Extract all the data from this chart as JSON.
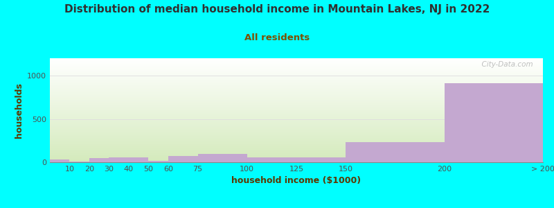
{
  "title": "Distribution of median household income in Mountain Lakes, NJ in 2022",
  "subtitle": "All residents",
  "xlabel": "household income ($1000)",
  "ylabel": "households",
  "tick_labels": [
    "10",
    "20",
    "30",
    "40",
    "50",
    "60",
    "75",
    "100",
    "125",
    "150",
    "200",
    "> 200"
  ],
  "bin_edges": [
    0,
    10,
    20,
    30,
    40,
    50,
    60,
    75,
    100,
    125,
    150,
    200,
    250
  ],
  "values": [
    35,
    10,
    45,
    55,
    55,
    15,
    70,
    95,
    55,
    60,
    235,
    910
  ],
  "bar_color": "#C4A8D0",
  "bg_outer": "#00FFFF",
  "bg_plot_top_color": "#FFFFFF",
  "bg_plot_bottom_color": "#D4EABC",
  "title_color": "#303030",
  "subtitle_color": "#7B5000",
  "axis_label_color": "#5B3800",
  "tick_color": "#505050",
  "grid_color": "#DDDDDD",
  "ylim": [
    0,
    1200
  ],
  "yticks": [
    0,
    500,
    1000
  ],
  "watermark": "  City-Data.com",
  "title_fontsize": 11,
  "subtitle_fontsize": 9.5,
  "axis_label_fontsize": 9,
  "tick_fontsize": 8
}
